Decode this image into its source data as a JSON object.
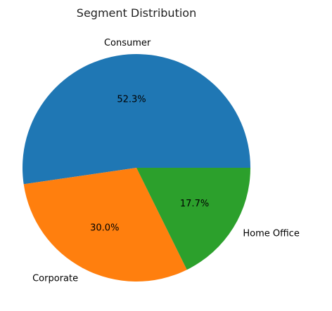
{
  "chart_data": {
    "type": "pie",
    "title": "Segment Distribution",
    "slices": [
      {
        "label": "Consumer",
        "value": 52.3,
        "pct_label": "52.3%",
        "color": "#1f77b4"
      },
      {
        "label": "Corporate",
        "value": 30.0,
        "pct_label": "30.0%",
        "color": "#ff7f0e"
      },
      {
        "label": "Home Office",
        "value": 17.7,
        "pct_label": "17.7%",
        "color": "#2ca02c"
      }
    ],
    "start_angle_deg": 0,
    "direction": "counterclockwise"
  }
}
